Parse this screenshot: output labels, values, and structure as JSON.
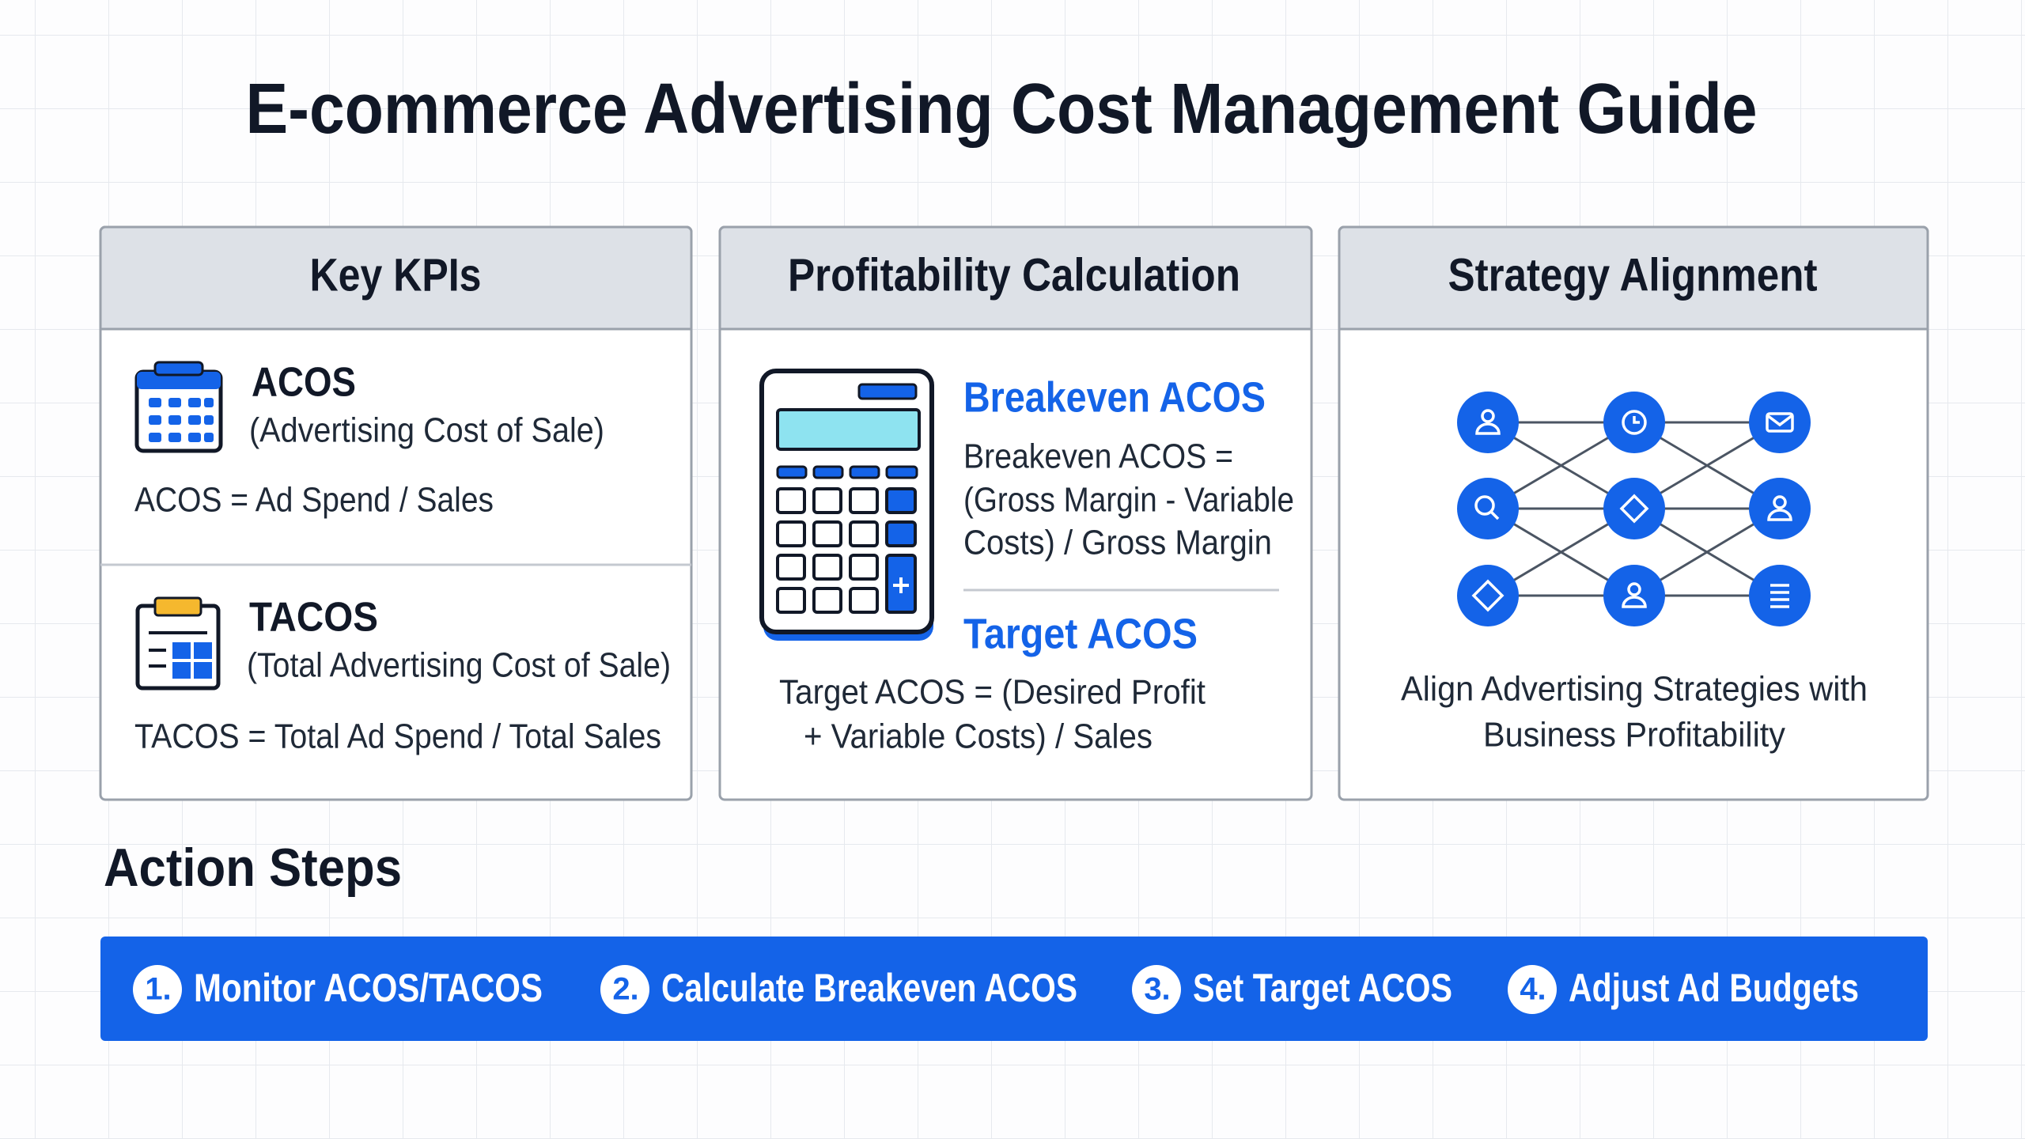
{
  "header": {
    "title": "E-commerce Advertising Cost Management Guide"
  },
  "panels": [
    {
      "title": "Key KPIs",
      "items": [
        {
          "name": "ACOS",
          "subtitle": "(Advertising Cost of Sale)",
          "formula": "ACOS = Ad Spend / Sales"
        },
        {
          "name": "TACOS",
          "subtitle": "(Total Advertising Cost of Sale)",
          "formula": "TACOS = Total Ad Spend / Total Sales"
        }
      ]
    },
    {
      "title": "Profitability Calculation",
      "items": [
        {
          "name": "Breakeven ACOS",
          "formula": [
            "Breakeven ACOS =",
            "(Gross Margin - Variable",
            "Costs) / Gross Margin"
          ]
        },
        {
          "name": "Target ACOS",
          "formula": [
            "Target ACOS = (Desired Profit",
            "+ Variable Costs) / Sales"
          ]
        }
      ]
    },
    {
      "title": "Strategy Alignment",
      "caption": [
        "Align Advertising Strategies with",
        "Business Profitability"
      ]
    }
  ],
  "action_steps": {
    "title": "Action Steps",
    "steps": [
      {
        "number": "1.",
        "text": "Monitor ACOS/TACOS"
      },
      {
        "number": "2.",
        "text": "Calculate Breakeven ACOS"
      },
      {
        "number": "3.",
        "text": "Set Target ACOS"
      },
      {
        "number": "4.",
        "text": "Adjust Ad Budgets"
      }
    ]
  }
}
